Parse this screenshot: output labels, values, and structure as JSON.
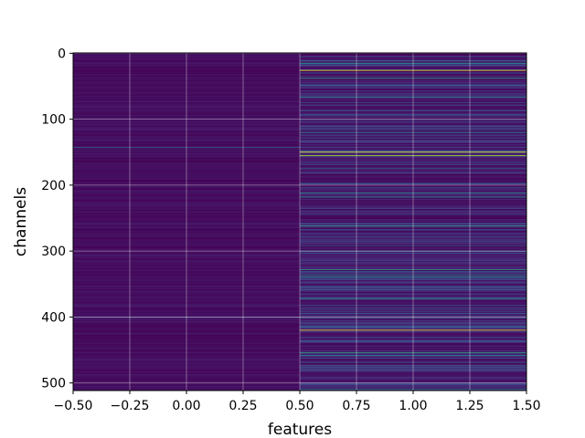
{
  "chart_data": {
    "type": "heatmap",
    "colormap": "viridis",
    "title": "",
    "xlabel": "features",
    "ylabel": "channels",
    "x_range": [
      -0.5,
      1.5
    ],
    "y_range": [
      -0.5,
      511.5
    ],
    "y_inverted": true,
    "grid": true,
    "columns": 2,
    "rows": 512,
    "x_ticks": [
      -0.5,
      -0.25,
      0.0,
      0.25,
      0.5,
      0.75,
      1.0,
      1.25,
      1.5
    ],
    "x_tick_labels": [
      "−0.50",
      "−0.25",
      "0.00",
      "0.25",
      "0.50",
      "0.75",
      "1.00",
      "1.25",
      "1.50"
    ],
    "y_ticks": [
      0,
      100,
      200,
      300,
      400,
      500
    ],
    "y_tick_labels": [
      "0",
      "100",
      "200",
      "300",
      "400",
      "500"
    ],
    "highlight_rows": [
      {
        "column": 0,
        "row": 143,
        "value": 0.35
      },
      {
        "column": 0,
        "row": 400,
        "value": 0.25
      },
      {
        "column": 1,
        "row": 15,
        "value": 0.5
      },
      {
        "column": 1,
        "row": 26,
        "value": 1.0
      },
      {
        "column": 1,
        "row": 38,
        "value": 0.6
      },
      {
        "column": 1,
        "row": 66,
        "value": 0.5
      },
      {
        "column": 1,
        "row": 120,
        "value": 0.45
      },
      {
        "column": 1,
        "row": 150,
        "value": 1.0
      },
      {
        "column": 1,
        "row": 155,
        "value": 0.9
      },
      {
        "column": 1,
        "row": 175,
        "value": 0.35
      },
      {
        "column": 1,
        "row": 212,
        "value": 0.5
      },
      {
        "column": 1,
        "row": 218,
        "value": 0.55
      },
      {
        "column": 1,
        "row": 262,
        "value": 0.6
      },
      {
        "column": 1,
        "row": 300,
        "value": 0.35
      },
      {
        "column": 1,
        "row": 328,
        "value": 0.6
      },
      {
        "column": 1,
        "row": 336,
        "value": 0.5
      },
      {
        "column": 1,
        "row": 340,
        "value": 0.45
      },
      {
        "column": 1,
        "row": 372,
        "value": 0.55
      },
      {
        "column": 1,
        "row": 420,
        "value": 1.0
      },
      {
        "column": 1,
        "row": 454,
        "value": 0.6
      },
      {
        "column": 1,
        "row": 458,
        "value": 0.5
      }
    ]
  }
}
